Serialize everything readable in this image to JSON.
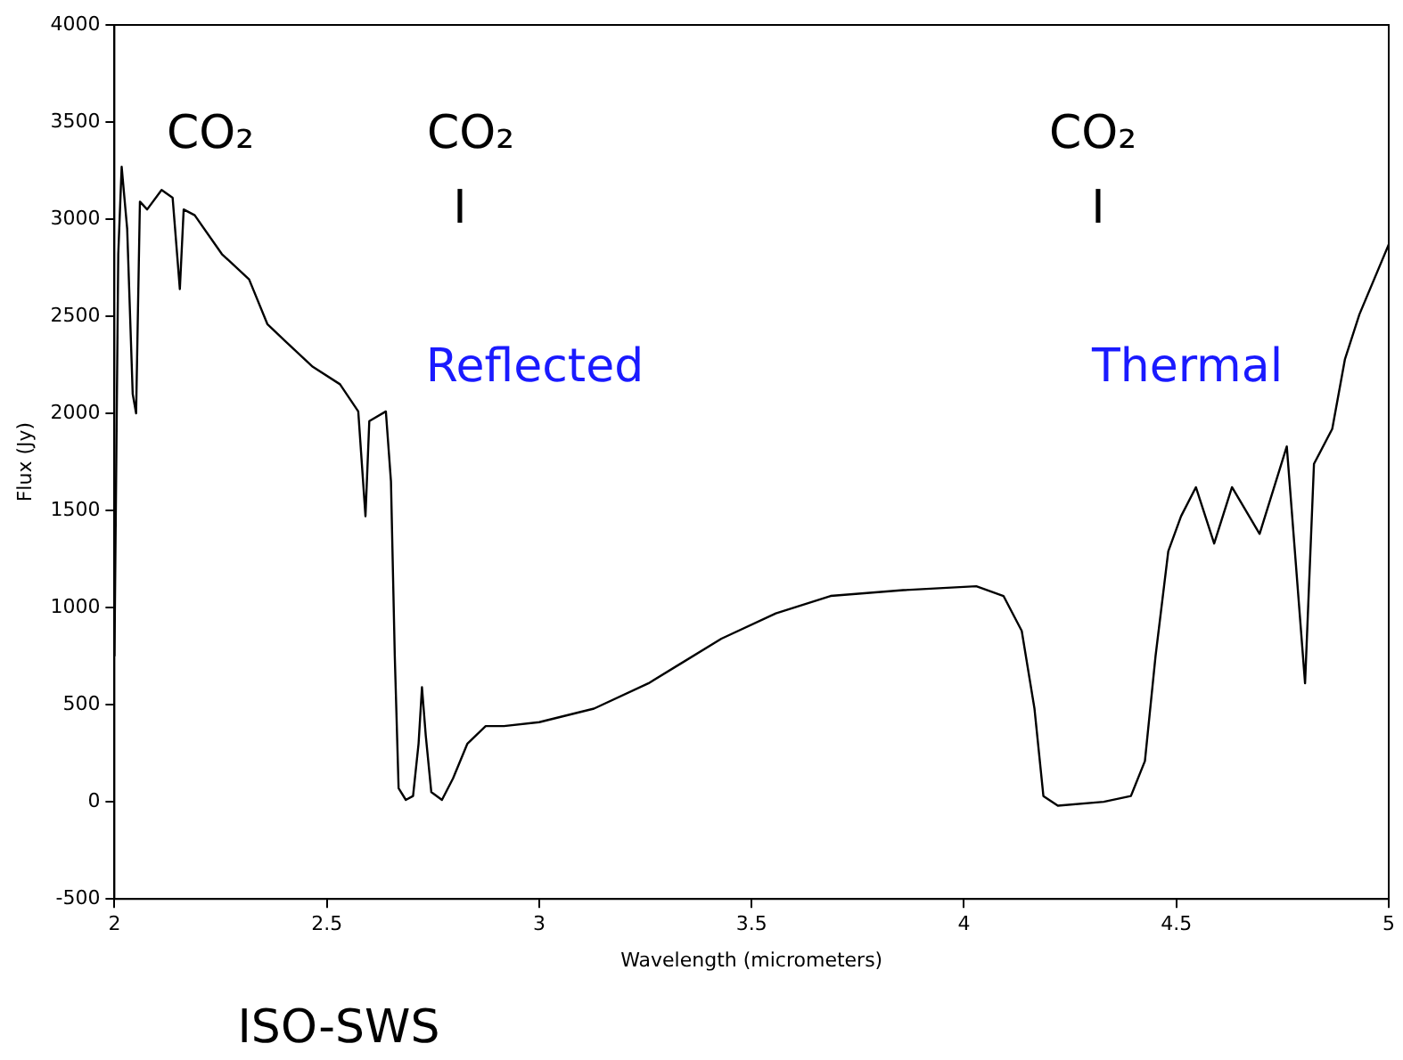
{
  "chart_data": {
    "type": "line",
    "xlabel": "Wavelength (micrometers)",
    "ylabel": "Flux (Jy)",
    "xlim": [
      2,
      5
    ],
    "xticks": [
      2,
      2.5,
      3,
      3.5,
      4,
      4.5,
      5
    ],
    "ylim": [
      -500,
      4000
    ],
    "yticks": [
      -500,
      0,
      500,
      1000,
      1500,
      2000,
      2500,
      3000,
      3500,
      4000
    ],
    "grid": false,
    "legend": false,
    "marker": "none",
    "line_style": "solid",
    "series": [
      {
        "color": "#000000",
        "x": [
          2.0,
          2.009,
          2.017,
          2.03,
          2.043,
          2.051,
          2.06,
          2.077,
          2.111,
          2.137,
          2.154,
          2.163,
          2.189,
          2.253,
          2.317,
          2.36,
          2.403,
          2.467,
          2.531,
          2.574,
          2.591,
          2.6,
          2.639,
          2.651,
          2.66,
          2.669,
          2.686,
          2.703,
          2.716,
          2.724,
          2.733,
          2.746,
          2.771,
          2.797,
          2.831,
          2.874,
          2.917,
          3.0,
          3.129,
          3.257,
          3.429,
          3.557,
          3.686,
          3.857,
          4.029,
          4.093,
          4.136,
          4.166,
          4.187,
          4.221,
          4.329,
          4.393,
          4.426,
          4.451,
          4.481,
          4.511,
          4.546,
          4.589,
          4.631,
          4.696,
          4.76,
          4.803,
          4.824,
          4.867,
          4.897,
          4.931,
          5.0
        ],
        "values": [
          750,
          2820,
          3270,
          2950,
          2100,
          2000,
          3090,
          3050,
          3150,
          3110,
          2640,
          3050,
          3020,
          2820,
          2690,
          2460,
          2370,
          2240,
          2150,
          2010,
          1470,
          1960,
          2010,
          1650,
          750,
          70,
          10,
          30,
          300,
          590,
          340,
          50,
          10,
          120,
          300,
          390,
          390,
          410,
          480,
          610,
          840,
          970,
          1060,
          1090,
          1110,
          1060,
          880,
          480,
          30,
          -20,
          0,
          30,
          210,
          750,
          1290,
          1470,
          1620,
          1330,
          1620,
          1380,
          1830,
          610,
          1740,
          1920,
          2280,
          2510,
          2870
        ]
      }
    ],
    "annotations": [
      "CO₂",
      "CO₂",
      "I",
      "CO₂",
      "I",
      "Reflected",
      "Thermal",
      "ISO-SWS"
    ]
  }
}
